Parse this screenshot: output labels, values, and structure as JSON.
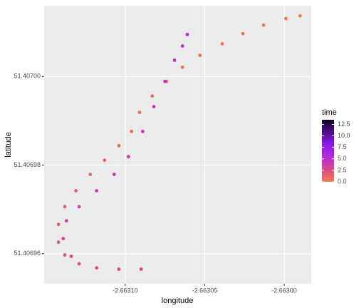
{
  "chart_data": {
    "type": "scatter",
    "xlabel": "longitude",
    "ylabel": "latitude",
    "xlim": [
      -2.663151,
      -2.662983
    ],
    "ylim": [
      51.4069532,
      51.407016
    ],
    "xticks": [
      {
        "value": -2.6631,
        "label": "-2.66310"
      },
      {
        "value": -2.66305,
        "label": "-2.66305"
      },
      {
        "value": -2.663,
        "label": "-2.66300"
      }
    ],
    "yticks": [
      {
        "value": 51.40696,
        "label": "51.40696"
      },
      {
        "value": 51.40698,
        "label": "51.40698"
      },
      {
        "value": 51.407,
        "label": "51.40700"
      }
    ],
    "grid": true,
    "legend": {
      "title": "time",
      "position": "right",
      "colorlim": [
        0,
        13.5
      ],
      "colors": [
        "#f47a4a",
        "#d9488c",
        "#b72bd6",
        "#8e1be8",
        "#4f0c8c",
        "#0d0220"
      ],
      "ticks": [
        {
          "value": 0,
          "label": "0.0"
        },
        2.5,
        {
          "value": 5,
          "label": "5.0"
        },
        7.5,
        {
          "value": 10,
          "label": "10.0"
        },
        12.5
      ]
    },
    "series": [
      {
        "name": "time",
        "x": [
          -2.66299,
          -2.662999,
          -2.663013,
          -2.663026,
          -2.663039,
          -2.663053,
          -2.663064,
          -2.663074,
          -2.663083,
          -2.663091,
          -2.663096,
          -2.663104,
          -2.663113,
          -2.663122,
          -2.663131,
          -2.663138,
          -2.663142,
          -2.663142,
          -2.663138,
          -2.663129,
          -2.663118,
          -2.663104,
          -2.66309,
          -2.663134,
          -2.663139,
          -2.663137,
          -2.663129,
          -2.663118,
          -2.663107,
          -2.663098,
          -2.663089,
          -2.663082,
          -2.663075,
          -2.663069,
          -2.663064,
          -2.663061
        ],
        "values": [
          51.4070137,
          51.4070131,
          51.4070116,
          51.4070097,
          51.4070074,
          51.4070048,
          51.4070021,
          51.4069989,
          51.4069956,
          51.4069919,
          51.4069876,
          51.4069844,
          51.4069811,
          51.4069779,
          51.4069742,
          51.4069706,
          51.4069666,
          51.4069626,
          51.4069597,
          51.4069577,
          51.4069568,
          51.4069565,
          51.4069565,
          51.4069594,
          51.4069634,
          51.4069674,
          51.4069706,
          51.4069742,
          51.4069779,
          51.4069819,
          51.4069876,
          51.4069932,
          51.4069989,
          51.4070037,
          51.4070069,
          51.4070095
        ],
        "time": [
          0,
          0.1,
          0.2,
          0.3,
          0.4,
          0.5,
          0.6,
          0.7,
          0.8,
          0.9,
          1.0,
          1.1,
          1.2,
          1.3,
          1.4,
          1.5,
          1.6,
          1.8,
          2.0,
          2.2,
          2.4,
          2.6,
          2.8,
          3.0,
          3.2,
          3.4,
          3.6,
          3.8,
          4.0,
          4.2,
          4.4,
          4.6,
          4.8,
          5.0,
          5.2,
          5.4
        ]
      }
    ]
  }
}
